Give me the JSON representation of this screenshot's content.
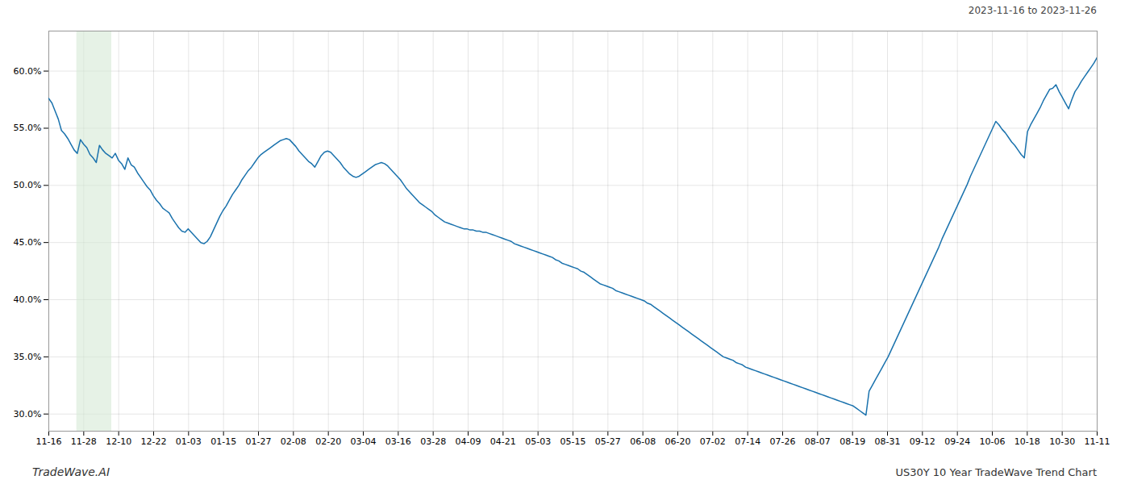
{
  "chart_data": {
    "type": "line",
    "title": "US30Y 10 Year TradeWave Trend Chart",
    "subtitle": "2023-11-16 to 2023-11-26",
    "annotations": [
      "TradeWave.AI"
    ],
    "color": "#1a72ad",
    "grid": true,
    "band": {
      "x": [
        0.8,
        1.8
      ],
      "color": "#d6ead6"
    },
    "xlim": [
      0,
      30
    ],
    "xticks": [
      {
        "value": 0,
        "label": "11-16"
      },
      {
        "value": 1,
        "label": "11-28"
      },
      {
        "value": 2,
        "label": "12-10"
      },
      {
        "value": 3,
        "label": "12-22"
      },
      {
        "value": 4,
        "label": "01-03"
      },
      {
        "value": 5,
        "label": "01-15"
      },
      {
        "value": 6,
        "label": "01-27"
      },
      {
        "value": 7,
        "label": "02-08"
      },
      {
        "value": 8,
        "label": "02-20"
      },
      {
        "value": 9,
        "label": "03-04"
      },
      {
        "value": 10,
        "label": "03-16"
      },
      {
        "value": 11,
        "label": "03-28"
      },
      {
        "value": 12,
        "label": "04-09"
      },
      {
        "value": 13,
        "label": "04-21"
      },
      {
        "value": 14,
        "label": "05-03"
      },
      {
        "value": 15,
        "label": "05-15"
      },
      {
        "value": 16,
        "label": "05-27"
      },
      {
        "value": 17,
        "label": "06-08"
      },
      {
        "value": 18,
        "label": "06-20"
      },
      {
        "value": 19,
        "label": "07-02"
      },
      {
        "value": 20,
        "label": "07-14"
      },
      {
        "value": 21,
        "label": "07-26"
      },
      {
        "value": 22,
        "label": "08-07"
      },
      {
        "value": 23,
        "label": "08-19"
      },
      {
        "value": 24,
        "label": "08-31"
      },
      {
        "value": 25,
        "label": "09-12"
      },
      {
        "value": 26,
        "label": "09-24"
      },
      {
        "value": 27,
        "label": "10-06"
      },
      {
        "value": 28,
        "label": "10-18"
      },
      {
        "value": 29,
        "label": "10-30"
      },
      {
        "value": 30,
        "label": "11-11"
      }
    ],
    "ylim": [
      0.285,
      0.635
    ],
    "yticks": [
      {
        "value": 0.3,
        "label": "30.0%"
      },
      {
        "value": 0.35,
        "label": "35.0%"
      },
      {
        "value": 0.4,
        "label": "40.0%"
      },
      {
        "value": 0.45,
        "label": "45.0%"
      },
      {
        "value": 0.5,
        "label": "50.0%"
      },
      {
        "value": 0.55,
        "label": "55.0%"
      },
      {
        "value": 0.6,
        "label": "60.0%"
      }
    ],
    "values": [
      0.576,
      0.572,
      0.565,
      0.558,
      0.548,
      0.545,
      0.541,
      0.536,
      0.531,
      0.528,
      0.54,
      0.536,
      0.533,
      0.527,
      0.524,
      0.52,
      0.535,
      0.531,
      0.528,
      0.526,
      0.524,
      0.528,
      0.522,
      0.519,
      0.514,
      0.524,
      0.518,
      0.516,
      0.511,
      0.507,
      0.503,
      0.499,
      0.496,
      0.491,
      0.487,
      0.484,
      0.48,
      0.478,
      0.476,
      0.471,
      0.467,
      0.463,
      0.46,
      0.459,
      0.462,
      0.459,
      0.456,
      0.453,
      0.45,
      0.449,
      0.451,
      0.455,
      0.461,
      0.467,
      0.473,
      0.478,
      0.482,
      0.487,
      0.492,
      0.496,
      0.5,
      0.505,
      0.509,
      0.513,
      0.516,
      0.52,
      0.524,
      0.527,
      0.529,
      0.531,
      0.533,
      0.535,
      0.537,
      0.539,
      0.54,
      0.541,
      0.54,
      0.537,
      0.534,
      0.53,
      0.527,
      0.524,
      0.521,
      0.519,
      0.516,
      0.521,
      0.526,
      0.529,
      0.53,
      0.529,
      0.526,
      0.523,
      0.52,
      0.516,
      0.513,
      0.51,
      0.508,
      0.507,
      0.508,
      0.51,
      0.512,
      0.514,
      0.516,
      0.518,
      0.519,
      0.52,
      0.519,
      0.517,
      0.514,
      0.511,
      0.508,
      0.505,
      0.501,
      0.497,
      0.494,
      0.491,
      0.488,
      0.485,
      0.483,
      0.481,
      0.479,
      0.477,
      0.474,
      0.472,
      0.47,
      0.468,
      0.467,
      0.466,
      0.465,
      0.464,
      0.463,
      0.462,
      0.462,
      0.461,
      0.461,
      0.46,
      0.46,
      0.459,
      0.459,
      0.458,
      0.457,
      0.456,
      0.455,
      0.454,
      0.453,
      0.452,
      0.451,
      0.449,
      0.448,
      0.447,
      0.446,
      0.445,
      0.444,
      0.443,
      0.442,
      0.441,
      0.44,
      0.439,
      0.438,
      0.437,
      0.435,
      0.434,
      0.432,
      0.431,
      0.43,
      0.429,
      0.428,
      0.427,
      0.425,
      0.424,
      0.422,
      0.42,
      0.418,
      0.416,
      0.414,
      0.413,
      0.412,
      0.411,
      0.41,
      0.408,
      0.407,
      0.406,
      0.405,
      0.404,
      0.403,
      0.402,
      0.401,
      0.4,
      0.399,
      0.397,
      0.396,
      0.394,
      0.392,
      0.39,
      0.388,
      0.386,
      0.384,
      0.382,
      0.38,
      0.378,
      0.376,
      0.374,
      0.372,
      0.37,
      0.368,
      0.366,
      0.364,
      0.362,
      0.36,
      0.358,
      0.356,
      0.354,
      0.352,
      0.35,
      0.349,
      0.348,
      0.347,
      0.345,
      0.344,
      0.343,
      0.341,
      0.34,
      0.339,
      0.338,
      0.337,
      0.336,
      0.335,
      0.334,
      0.333,
      0.332,
      0.331,
      0.33,
      0.329,
      0.328,
      0.327,
      0.326,
      0.325,
      0.324,
      0.323,
      0.322,
      0.321,
      0.32,
      0.319,
      0.318,
      0.317,
      0.316,
      0.315,
      0.314,
      0.313,
      0.312,
      0.311,
      0.31,
      0.309,
      0.308,
      0.307,
      0.305,
      0.303,
      0.301,
      0.299,
      0.32,
      0.325,
      0.33,
      0.335,
      0.34,
      0.345,
      0.35,
      0.356,
      0.362,
      0.368,
      0.374,
      0.38,
      0.386,
      0.392,
      0.398,
      0.404,
      0.41,
      0.416,
      0.422,
      0.428,
      0.434,
      0.44,
      0.446,
      0.453,
      0.459,
      0.465,
      0.471,
      0.477,
      0.483,
      0.489,
      0.495,
      0.501,
      0.508,
      0.514,
      0.52,
      0.526,
      0.532,
      0.538,
      0.544,
      0.55,
      0.556,
      0.553,
      0.549,
      0.546,
      0.542,
      0.538,
      0.535,
      0.531,
      0.527,
      0.524,
      0.547,
      0.553,
      0.558,
      0.563,
      0.568,
      0.574,
      0.579,
      0.584,
      0.585,
      0.588,
      0.582,
      0.577,
      0.572,
      0.567,
      0.575,
      0.582,
      0.586,
      0.591,
      0.595,
      0.599,
      0.603,
      0.607,
      0.612
    ]
  }
}
